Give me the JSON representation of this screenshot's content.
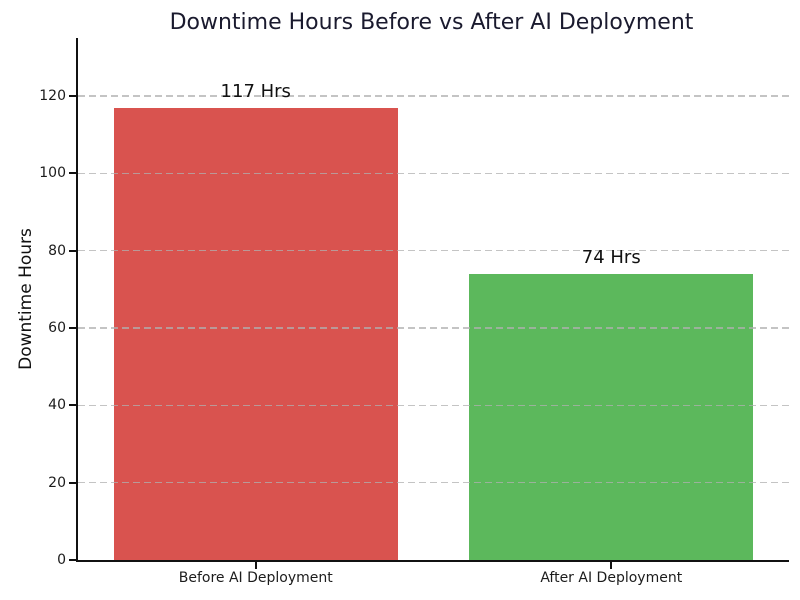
{
  "chart_data": {
    "type": "bar",
    "title": "Downtime Hours Before vs After AI Deployment",
    "xlabel": "",
    "ylabel": "Downtime Hours",
    "categories": [
      "Before AI Deployment",
      "After AI Deployment"
    ],
    "values": [
      117,
      74
    ],
    "bar_labels": [
      "117 Hrs",
      "74 Hrs"
    ],
    "bar_colors": [
      "#d9534f",
      "#5cb85c"
    ],
    "ylim": [
      0,
      135
    ],
    "yticks": [
      0,
      20,
      40,
      60,
      80,
      100,
      120
    ],
    "grid": "horizontal-dashed",
    "grid_on": true,
    "legend": "none",
    "bar_width_fraction": 0.8,
    "spines": [
      "left",
      "bottom"
    ]
  },
  "colors": {
    "background": "#ffffff",
    "title_text": "#1a1a2e",
    "axis": "#111111",
    "grid": "#b0b0b0",
    "tick_label": "#1c1c1c",
    "value_label": "#111111",
    "bar_before": "#d9534f",
    "bar_after": "#5cb85c"
  }
}
